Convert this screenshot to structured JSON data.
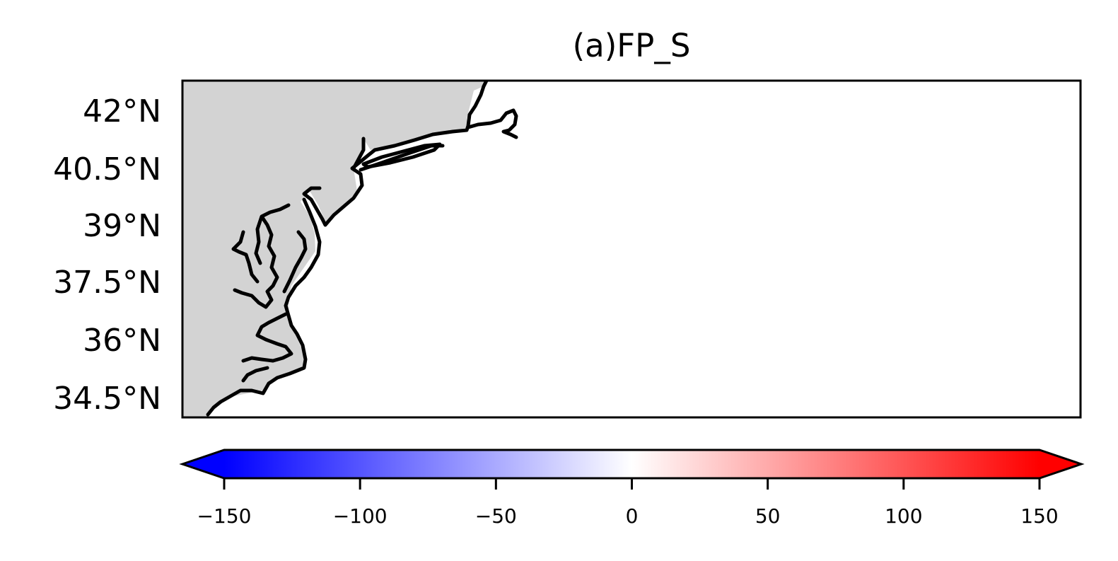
{
  "title": "(a)FP_S",
  "map": {
    "land_color": "#d3d3d3",
    "ocean_color": "#ffffff",
    "coastline_color": "#000000",
    "lat_ticks": [
      {
        "value": 42,
        "label": "42°N"
      },
      {
        "value": 40.5,
        "label": "40.5°N"
      },
      {
        "value": 39,
        "label": "39°N"
      },
      {
        "value": 37.5,
        "label": "37.5°N"
      },
      {
        "value": 36,
        "label": "36°N"
      },
      {
        "value": 34.5,
        "label": "34.5°N"
      }
    ]
  },
  "colorbar": {
    "colormap": "bwr",
    "color_low": "#0000ff",
    "color_mid": "#ffffff",
    "color_high": "#ff0000",
    "extend": "both",
    "range": [
      -150,
      150
    ],
    "ticks": [
      {
        "value": -150,
        "label": "−150"
      },
      {
        "value": -100,
        "label": "−100"
      },
      {
        "value": -50,
        "label": "−50"
      },
      {
        "value": 0,
        "label": "0"
      },
      {
        "value": 50,
        "label": "50"
      },
      {
        "value": 100,
        "label": "100"
      },
      {
        "value": 150,
        "label": "150"
      }
    ]
  }
}
